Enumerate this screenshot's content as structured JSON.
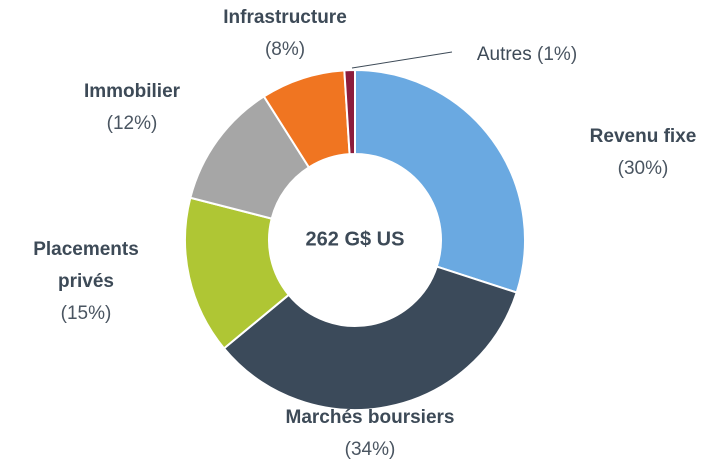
{
  "chart_data": {
    "type": "donut",
    "center_label": "262 G$ US",
    "categories": [
      "Revenu fixe",
      "Marchés boursiers",
      "Placements privés",
      "Immobilier",
      "Infrastructure",
      "Autres"
    ],
    "values": [
      30,
      34,
      15,
      12,
      8,
      1
    ],
    "value_labels": [
      "(30%)",
      "(34%)",
      "(15%)",
      "(12%)",
      "(8%)",
      "(1%)"
    ],
    "colors": [
      "#6aa9e1",
      "#3b4a5a",
      "#afc634",
      "#a6a6a6",
      "#f07521",
      "#8c1c3c"
    ]
  }
}
